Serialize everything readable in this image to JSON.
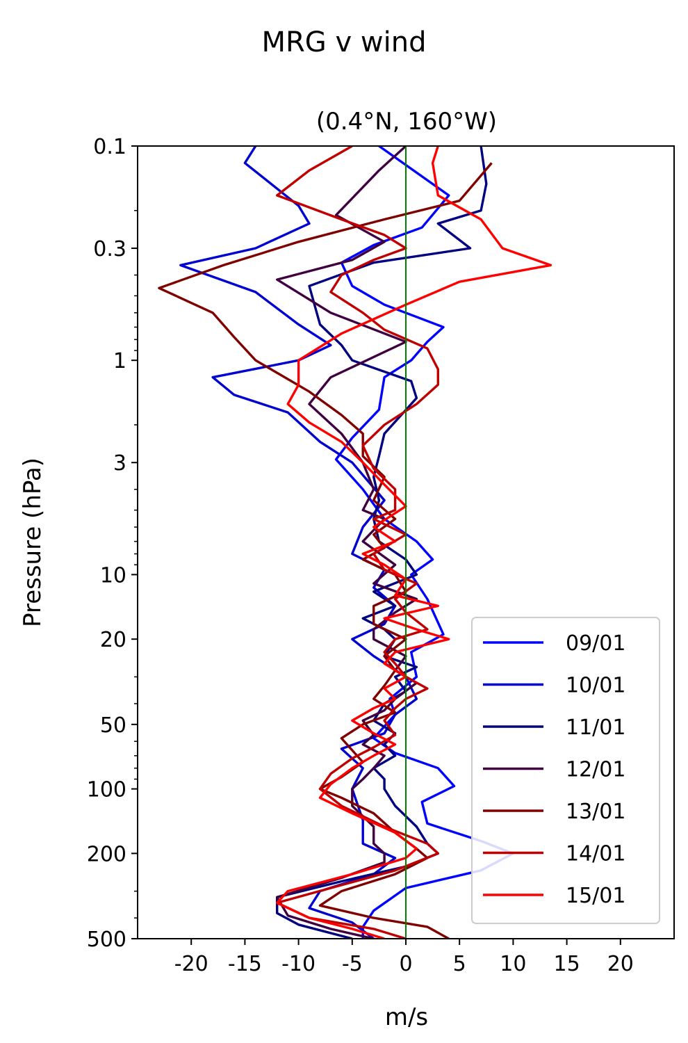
{
  "chart_data": {
    "type": "line",
    "title": "MRG v wind",
    "subtitle": "(0.4°N, 160°W)",
    "xlabel": "m/s",
    "ylabel": "Pressure (hPa)",
    "xlim": [
      -25,
      25
    ],
    "ylim": [
      500,
      0.1
    ],
    "yscale": "log",
    "y_inverted": true,
    "xticks": [
      -20,
      -15,
      -10,
      -5,
      0,
      5,
      10,
      15,
      20
    ],
    "xtick_labels": [
      "-20",
      "-15",
      "-10",
      "-5",
      "0",
      "5",
      "10",
      "15",
      "20"
    ],
    "yticks": [
      0.1,
      0.3,
      1,
      3,
      10,
      20,
      50,
      100,
      200,
      500
    ],
    "ytick_labels": [
      "0.1",
      "0.3",
      "1",
      "3",
      "10",
      "20",
      "50",
      "100",
      "200",
      "500"
    ],
    "zero_line": {
      "x": 0,
      "color": "#008000"
    },
    "legend_position": "lower-right",
    "series": [
      {
        "name": "09/01",
        "color": "#0000ff",
        "points": [
          [
            -2.5,
            0.1
          ],
          [
            4,
            0.17
          ],
          [
            1.5,
            0.24
          ],
          [
            -3,
            0.29
          ],
          [
            -6,
            0.35
          ],
          [
            -5,
            0.45
          ],
          [
            -2,
            0.55
          ],
          [
            3.5,
            0.7
          ],
          [
            2,
            0.82
          ],
          [
            0.5,
            1
          ],
          [
            -2,
            1.2
          ],
          [
            -2.5,
            1.7
          ],
          [
            -5,
            2.3
          ],
          [
            -6.5,
            2.9
          ],
          [
            -4,
            4
          ],
          [
            -2,
            5.5
          ],
          [
            1,
            7
          ],
          [
            2.5,
            8.5
          ],
          [
            0.5,
            10
          ],
          [
            2,
            13
          ],
          [
            3.5,
            19
          ],
          [
            0.5,
            23
          ],
          [
            1,
            30
          ],
          [
            -1.5,
            38
          ],
          [
            -1,
            45
          ],
          [
            -3,
            58
          ],
          [
            -1,
            68
          ],
          [
            3,
            80
          ],
          [
            4.5,
            97
          ],
          [
            1.5,
            115
          ],
          [
            2,
            145
          ],
          [
            7,
            175
          ],
          [
            10,
            200
          ],
          [
            7,
            240
          ],
          [
            0,
            290
          ],
          [
            -3,
            370
          ],
          [
            -4,
            440
          ],
          [
            -4,
            500
          ]
        ]
      },
      {
        "name": "10/01",
        "color": "#0000d0",
        "points": [
          [
            -14,
            0.1
          ],
          [
            -15,
            0.12
          ],
          [
            -10,
            0.19
          ],
          [
            -9,
            0.23
          ],
          [
            -14,
            0.3
          ],
          [
            -21,
            0.36
          ],
          [
            -14,
            0.48
          ],
          [
            -10,
            0.68
          ],
          [
            -7,
            0.85
          ],
          [
            -10,
            1
          ],
          [
            -18,
            1.2
          ],
          [
            -16,
            1.45
          ],
          [
            -11,
            1.75
          ],
          [
            -8,
            2.4
          ],
          [
            -5,
            3
          ],
          [
            -2,
            4.5
          ],
          [
            -4,
            6
          ],
          [
            -5,
            8
          ],
          [
            -2,
            9.5
          ],
          [
            -3,
            11.5
          ],
          [
            -1,
            14
          ],
          [
            -2,
            17
          ],
          [
            -5,
            20
          ],
          [
            -3,
            24
          ],
          [
            0,
            30
          ],
          [
            1,
            38
          ],
          [
            -1,
            45
          ],
          [
            -2,
            55
          ],
          [
            -6,
            65
          ],
          [
            -4,
            80
          ],
          [
            -5,
            100
          ],
          [
            -4,
            140
          ],
          [
            -4,
            180
          ],
          [
            -1,
            210
          ],
          [
            -3,
            250
          ],
          [
            -8,
            300
          ],
          [
            -9,
            360
          ],
          [
            -5,
            420
          ],
          [
            -3,
            500
          ]
        ]
      },
      {
        "name": "11/01",
        "color": "#000080",
        "points": [
          [
            7,
            0.1
          ],
          [
            7.5,
            0.15
          ],
          [
            7,
            0.2
          ],
          [
            3,
            0.23
          ],
          [
            6,
            0.3
          ],
          [
            -3,
            0.35
          ],
          [
            -9,
            0.45
          ],
          [
            -8,
            0.68
          ],
          [
            -6,
            0.85
          ],
          [
            -5,
            1
          ],
          [
            0.5,
            1.25
          ],
          [
            1,
            1.5
          ],
          [
            -2,
            2.2
          ],
          [
            -2.5,
            2.8
          ],
          [
            -3,
            3.5
          ],
          [
            -2.5,
            4.5
          ],
          [
            -3,
            5.5
          ],
          [
            -2.5,
            7
          ],
          [
            0,
            8.5
          ],
          [
            1,
            10
          ],
          [
            -3,
            12
          ],
          [
            -1,
            14
          ],
          [
            -4,
            16
          ],
          [
            -2,
            18
          ],
          [
            -1,
            20
          ],
          [
            -2,
            24
          ],
          [
            1,
            27
          ],
          [
            -1,
            30
          ],
          [
            0,
            35
          ],
          [
            -2,
            40
          ],
          [
            -3,
            48
          ],
          [
            -1,
            55
          ],
          [
            -2,
            62
          ],
          [
            -1,
            70
          ],
          [
            -3,
            80
          ],
          [
            -2,
            90
          ],
          [
            -2,
            100
          ],
          [
            -1,
            120
          ],
          [
            1,
            150
          ],
          [
            2,
            180
          ],
          [
            3,
            200
          ],
          [
            0,
            230
          ],
          [
            -6,
            270
          ],
          [
            -12,
            320
          ],
          [
            -12,
            380
          ],
          [
            -10,
            430
          ],
          [
            -5,
            500
          ]
        ]
      },
      {
        "name": "12/01",
        "color": "#400040",
        "points": [
          [
            0,
            0.1
          ],
          [
            -2.5,
            0.13
          ],
          [
            -6.5,
            0.21
          ],
          [
            -2,
            0.28
          ],
          [
            -5,
            0.34
          ],
          [
            -12,
            0.42
          ],
          [
            -7,
            0.6
          ],
          [
            0,
            0.82
          ],
          [
            -7,
            1.2
          ],
          [
            -9,
            1.6
          ],
          [
            -6,
            2.2
          ],
          [
            -4,
            3
          ],
          [
            -3,
            4
          ],
          [
            -4,
            5
          ],
          [
            -2,
            5.5
          ],
          [
            -4,
            7
          ],
          [
            -1,
            9
          ],
          [
            -3,
            11
          ],
          [
            1,
            13
          ],
          [
            -1,
            15
          ],
          [
            -3,
            18
          ],
          [
            -3,
            20
          ],
          [
            0,
            24
          ],
          [
            -1,
            28
          ],
          [
            1,
            32
          ],
          [
            -1,
            38
          ],
          [
            -2,
            43
          ],
          [
            -4,
            48
          ],
          [
            -3,
            56
          ],
          [
            -4,
            62
          ],
          [
            -2,
            70
          ],
          [
            -3,
            80
          ],
          [
            -4,
            90
          ],
          [
            -5,
            100
          ],
          [
            -5,
            120
          ],
          [
            -3,
            150
          ],
          [
            -3,
            180
          ],
          [
            -2,
            200
          ],
          [
            -2,
            220
          ],
          [
            -6,
            260
          ],
          [
            -12,
            320
          ],
          [
            -11,
            390
          ],
          [
            -7,
            450
          ],
          [
            -3,
            500
          ]
        ]
      },
      {
        "name": "13/01",
        "color": "#800000",
        "points": [
          [
            8,
            0.12
          ],
          [
            5,
            0.18
          ],
          [
            -2,
            0.22
          ],
          [
            -10,
            0.28
          ],
          [
            -17,
            0.36
          ],
          [
            -23,
            0.46
          ],
          [
            -18,
            0.6
          ],
          [
            -16,
            0.78
          ],
          [
            -14,
            1
          ],
          [
            -9,
            1.4
          ],
          [
            -6,
            1.8
          ],
          [
            -4,
            2.2
          ],
          [
            -4,
            2.8
          ],
          [
            -2,
            3.5
          ],
          [
            -3,
            4.5
          ],
          [
            -1,
            5.5
          ],
          [
            -3,
            6.5
          ],
          [
            -2,
            7.5
          ],
          [
            -4,
            8.5
          ],
          [
            -1,
            10
          ],
          [
            0,
            12
          ],
          [
            -3,
            14
          ],
          [
            -3,
            17
          ],
          [
            0,
            20
          ],
          [
            -2,
            24
          ],
          [
            -1,
            28
          ],
          [
            -2,
            33
          ],
          [
            -3,
            38
          ],
          [
            -1,
            44
          ],
          [
            -4,
            50
          ],
          [
            -6,
            58
          ],
          [
            -5,
            66
          ],
          [
            -4,
            75
          ],
          [
            -6,
            88
          ],
          [
            -8,
            100
          ],
          [
            -6,
            110
          ],
          [
            -3,
            130
          ],
          [
            -1,
            160
          ],
          [
            1,
            190
          ],
          [
            2,
            210
          ],
          [
            -1,
            250
          ],
          [
            -6,
            300
          ],
          [
            -8,
            350
          ],
          [
            -3,
            400
          ],
          [
            2,
            440
          ],
          [
            4,
            500
          ]
        ]
      },
      {
        "name": "14/01",
        "color": "#c00000",
        "points": [
          [
            -5,
            0.1
          ],
          [
            -9,
            0.13
          ],
          [
            -12,
            0.17
          ],
          [
            -6,
            0.22
          ],
          [
            -2,
            0.26
          ],
          [
            0,
            0.3
          ],
          [
            -3,
            0.34
          ],
          [
            -6,
            0.4
          ],
          [
            -7,
            0.48
          ],
          [
            -4,
            0.6
          ],
          [
            -2,
            0.72
          ],
          [
            2,
            0.88
          ],
          [
            3,
            1.1
          ],
          [
            3,
            1.3
          ],
          [
            1,
            1.6
          ],
          [
            -2,
            2
          ],
          [
            -4,
            2.5
          ],
          [
            -3,
            3.2
          ],
          [
            -1,
            4
          ],
          [
            -1,
            5
          ],
          [
            -3,
            5.5
          ],
          [
            0,
            6.5
          ],
          [
            -3,
            8
          ],
          [
            -2,
            9.5
          ],
          [
            1,
            11
          ],
          [
            -1,
            13
          ],
          [
            0,
            15
          ],
          [
            2,
            18
          ],
          [
            -1,
            20
          ],
          [
            -2,
            23
          ],
          [
            -1,
            26
          ],
          [
            0,
            30
          ],
          [
            2,
            34
          ],
          [
            0,
            38
          ],
          [
            -1,
            42
          ],
          [
            -2,
            48
          ],
          [
            -1,
            56
          ],
          [
            -3,
            64
          ],
          [
            -5,
            72
          ],
          [
            -7,
            85
          ],
          [
            -8,
            100
          ],
          [
            -6,
            120
          ],
          [
            -2,
            150
          ],
          [
            2,
            180
          ],
          [
            3,
            200
          ],
          [
            -1,
            240
          ],
          [
            -7,
            290
          ],
          [
            -12,
            340
          ],
          [
            -9,
            400
          ],
          [
            -3,
            450
          ],
          [
            0,
            500
          ]
        ]
      },
      {
        "name": "15/01",
        "color": "#ff0000",
        "points": [
          [
            3,
            0.1
          ],
          [
            2.5,
            0.12
          ],
          [
            3,
            0.17
          ],
          [
            7,
            0.22
          ],
          [
            9,
            0.3
          ],
          [
            13.5,
            0.36
          ],
          [
            5,
            0.43
          ],
          [
            0,
            0.55
          ],
          [
            -6,
            0.75
          ],
          [
            -10,
            1
          ],
          [
            -10,
            1.3
          ],
          [
            -11,
            1.6
          ],
          [
            -9,
            1.95
          ],
          [
            -6,
            2.4
          ],
          [
            -4,
            3
          ],
          [
            -2,
            3.8
          ],
          [
            0,
            4.8
          ],
          [
            -3,
            6
          ],
          [
            -1,
            7
          ],
          [
            -4,
            8
          ],
          [
            -2,
            9
          ],
          [
            0,
            10.5
          ],
          [
            -1,
            12.5
          ],
          [
            3,
            14
          ],
          [
            -2,
            16
          ],
          [
            1,
            18
          ],
          [
            4,
            20
          ],
          [
            -1,
            23
          ],
          [
            -2,
            26
          ],
          [
            0,
            30
          ],
          [
            -2,
            34
          ],
          [
            -1,
            38
          ],
          [
            -3,
            42
          ],
          [
            -5,
            48
          ],
          [
            -3,
            55
          ],
          [
            -1,
            62
          ],
          [
            -3,
            70
          ],
          [
            -5,
            80
          ],
          [
            -7,
            95
          ],
          [
            -8,
            110
          ],
          [
            -5,
            130
          ],
          [
            -1,
            160
          ],
          [
            1,
            190
          ],
          [
            0,
            210
          ],
          [
            -5,
            250
          ],
          [
            -11,
            300
          ],
          [
            -12,
            340
          ],
          [
            -9,
            400
          ],
          [
            -5,
            450
          ],
          [
            -2,
            500
          ]
        ]
      }
    ]
  }
}
